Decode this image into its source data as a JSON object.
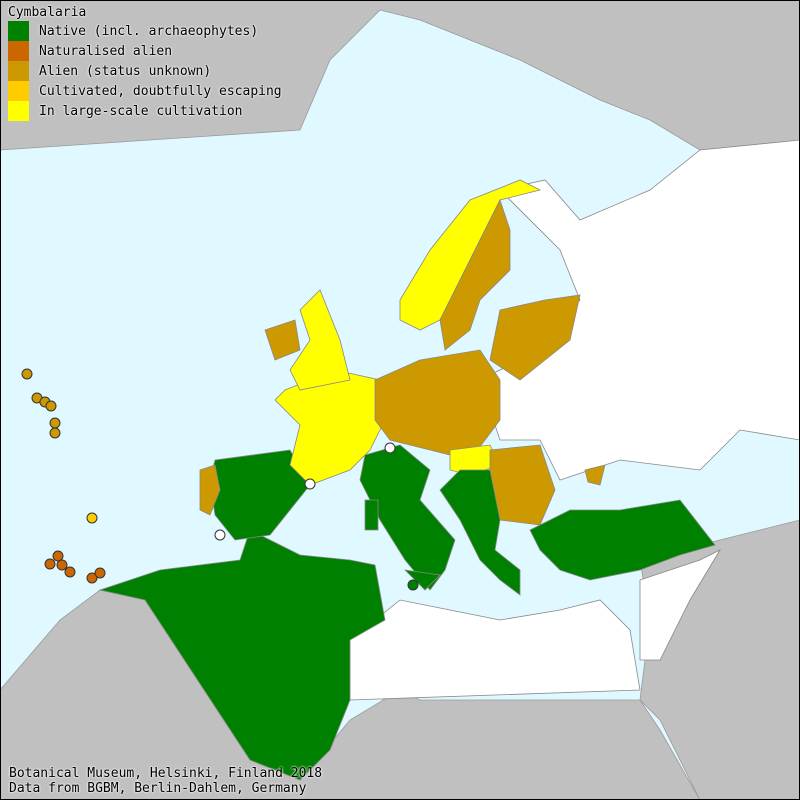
{
  "legend": {
    "title": "Cymbalaria",
    "items": [
      {
        "label": "Native (incl. archaeophytes)",
        "color": "#008000"
      },
      {
        "label": "Naturalised alien",
        "color": "#cc6600"
      },
      {
        "label": "Alien (status unknown)",
        "color": "#cc9900"
      },
      {
        "label": "Cultivated, doubtfully escaping",
        "color": "#ffcc00"
      },
      {
        "label": "In large-scale cultivation",
        "color": "#ffff00"
      }
    ]
  },
  "colors": {
    "sea": "#e0f8ff",
    "outside_land": "#c0c0c0",
    "no_record": "#ffffff"
  },
  "footer": {
    "line1": "Botanical Museum, Helsinki, Finland 2018",
    "line2": "Data from BGBM, Berlin-Dahlem, Germany"
  }
}
